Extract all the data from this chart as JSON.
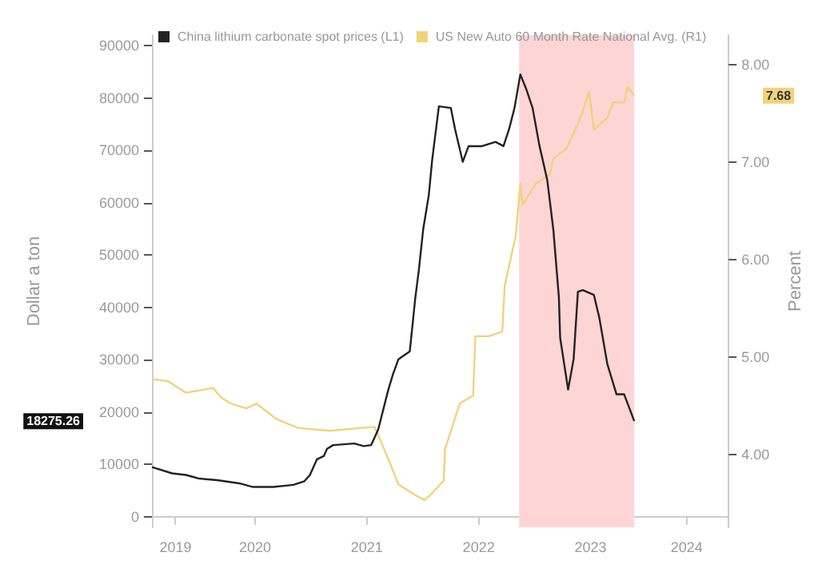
{
  "chart_data": {
    "type": "line",
    "ylabel": "Dollar a ton",
    "y2label": "Percent",
    "series": [
      {
        "name": "China lithium carbonate spot prices (L1)",
        "color": "#222222",
        "x": [
          "2019-07-30",
          "2019-10-04",
          "2019-11-18",
          "2020-01-01",
          "2020-02-28",
          "2020-05-10",
          "2020-06-24",
          "2020-08-29",
          "2020-11-03",
          "2020-12-09",
          "2020-12-27",
          "2021-01-19",
          "2021-02-10",
          "2021-02-21",
          "2021-03-13",
          "2021-05-21",
          "2021-06-20",
          "2021-07-15",
          "2021-08-07",
          "2021-09-09",
          "2021-09-24",
          "2021-10-12",
          "2021-11-18",
          "2021-12-06",
          "2021-12-17",
          "2022-01-01",
          "2022-01-19",
          "2022-01-30",
          "2022-02-21",
          "2022-04-01",
          "2022-04-15",
          "2022-05-10",
          "2022-05-29",
          "2022-07-12",
          "2022-08-25",
          "2022-09-20",
          "2022-10-08",
          "2022-10-26",
          "2022-11-14",
          "2022-12-02",
          "2022-12-24",
          "2023-01-15",
          "2023-02-10",
          "2023-03-02",
          "2023-03-20",
          "2023-03-24",
          "2023-04-19",
          "2023-05-07",
          "2023-05-21",
          "2023-06-06",
          "2023-07-12",
          "2023-07-30",
          "2023-08-25",
          "2023-09-24",
          "2023-10-19",
          "2023-11-21"
        ],
        "values": [
          9500,
          8300,
          8000,
          7300,
          7000,
          6400,
          5700,
          5700,
          6100,
          6800,
          8000,
          11000,
          11600,
          13000,
          13700,
          14000,
          13500,
          13700,
          16700,
          24300,
          27200,
          30100,
          31600,
          41800,
          46800,
          55000,
          61400,
          68100,
          78400,
          78100,
          74000,
          67800,
          70800,
          70800,
          71600,
          70800,
          74000,
          78100,
          84500,
          81900,
          78100,
          71000,
          64300,
          54700,
          41800,
          34200,
          24300,
          30100,
          43000,
          43300,
          42400,
          38000,
          29200,
          23400,
          23400,
          18275.26
        ]
      },
      {
        "name": "US New Auto 60 Month Rate National Avg. (R1)",
        "color": "#f2d27a",
        "axis": "y2",
        "x": [
          "2019-07-30",
          "2019-09-20",
          "2019-11-18",
          "2020-02-14",
          "2020-03-13",
          "2020-04-12",
          "2020-06-02",
          "2020-07-05",
          "2020-09-09",
          "2020-11-18",
          "2021-03-02",
          "2021-06-13",
          "2021-07-26",
          "2021-09-09",
          "2021-10-12",
          "2021-12-06",
          "2022-01-05",
          "2022-01-30",
          "2022-03-09",
          "2022-03-13",
          "2022-04-30",
          "2022-06-13",
          "2022-06-20",
          "2022-08-03",
          "2022-09-16",
          "2022-09-24",
          "2022-10-30",
          "2022-11-14",
          "2022-11-21",
          "2023-01-05",
          "2023-02-18",
          "2023-03-02",
          "2023-04-15",
          "2023-05-29",
          "2023-06-27",
          "2023-07-12",
          "2023-08-25",
          "2023-09-13",
          "2023-10-19",
          "2023-10-30",
          "2023-11-21"
        ],
        "values": [
          4.77,
          4.75,
          4.63,
          4.68,
          4.58,
          4.52,
          4.47,
          4.52,
          4.36,
          4.27,
          4.24,
          4.27,
          4.28,
          3.95,
          3.69,
          3.58,
          3.53,
          3.6,
          3.73,
          4.05,
          4.52,
          4.6,
          5.21,
          5.21,
          5.26,
          5.73,
          6.24,
          6.78,
          6.56,
          6.78,
          6.87,
          7.03,
          7.14,
          7.45,
          7.72,
          7.33,
          7.45,
          7.61,
          7.61,
          7.77,
          7.68
        ]
      }
    ],
    "xlim": [
      "2019-07-30",
      "2024-09-24"
    ],
    "xticks": [
      {
        "value": "2019-10-15",
        "label": "2019"
      },
      {
        "value": "2020-07-01",
        "label": "2020"
      },
      {
        "value": "2021-07-01",
        "label": "2021"
      },
      {
        "value": "2022-07-01",
        "label": "2022"
      },
      {
        "value": "2023-07-01",
        "label": "2023"
      },
      {
        "value": "2024-05-10",
        "label": "2024"
      }
    ],
    "ylim": [
      -2000,
      92000
    ],
    "yticks": [
      0,
      10000,
      20000,
      30000,
      40000,
      50000,
      60000,
      70000,
      80000,
      90000
    ],
    "y2lim": [
      3.25,
      8.3
    ],
    "y2ticks": [
      {
        "value": 4,
        "label": "4.00"
      },
      {
        "value": 5,
        "label": "5.00"
      },
      {
        "value": 6,
        "label": "6.00"
      },
      {
        "value": 7,
        "label": "7.00"
      },
      {
        "value": 8,
        "label": "8.00"
      }
    ],
    "bands": [
      {
        "axis": "x",
        "from": "2022-11-10",
        "to": "2023-11-21",
        "color": "#fdd5d5"
      }
    ],
    "annotations": [
      "18275.26",
      "7.68"
    ],
    "grid": false,
    "legend": "top left",
    "marker": "none",
    "line_style": "solid"
  }
}
